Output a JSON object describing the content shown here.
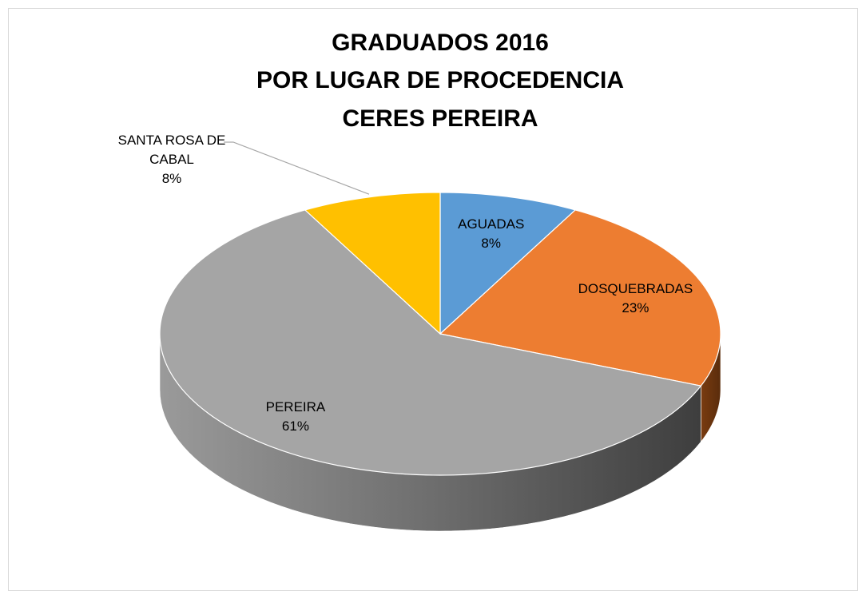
{
  "chart_data": {
    "type": "pie3d",
    "title": [
      "GRADUADOS 2016",
      "POR LUGAR DE PROCEDENCIA",
      "CERES PEREIRA"
    ],
    "categories": [
      "AGUADAS",
      "DOSQUEBRADAS",
      "PEREIRA",
      "SANTA ROSA DE CABAL"
    ],
    "values": [
      8,
      23,
      61,
      8
    ],
    "value_labels": [
      "8%",
      "23%",
      "61%",
      "8%"
    ],
    "colors": [
      "#5b9bd5",
      "#ed7d31",
      "#a5a5a5",
      "#ffc000"
    ]
  }
}
